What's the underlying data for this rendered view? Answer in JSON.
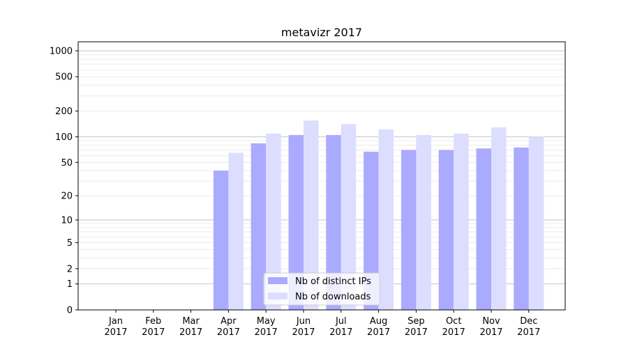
{
  "chart_data": {
    "type": "bar",
    "title": "metavizr 2017",
    "xlabel": "",
    "ylabel": "",
    "yscale": "symlog (log10(v+1))",
    "ylim": [
      0,
      1200
    ],
    "yticks": [
      0,
      1,
      2,
      5,
      10,
      20,
      50,
      100,
      200,
      500,
      1000
    ],
    "grid": true,
    "legend_position": "lower-center",
    "categories": [
      "Jan\n2017",
      "Feb\n2017",
      "Mar\n2017",
      "Apr\n2017",
      "May\n2017",
      "Jun\n2017",
      "Jul\n2017",
      "Aug\n2017",
      "Sep\n2017",
      "Oct\n2017",
      "Nov\n2017",
      "Dec\n2017"
    ],
    "series": [
      {
        "name": "Nb of distinct IPs",
        "color": "#aaaaff",
        "values": [
          0,
          0,
          0,
          40,
          84,
          105,
          105,
          67,
          70,
          70,
          73,
          75
        ]
      },
      {
        "name": "Nb of downloads",
        "color": "#ddddff",
        "values": [
          0,
          0,
          0,
          65,
          109,
          155,
          141,
          122,
          105,
          109,
          129,
          100
        ]
      }
    ]
  }
}
